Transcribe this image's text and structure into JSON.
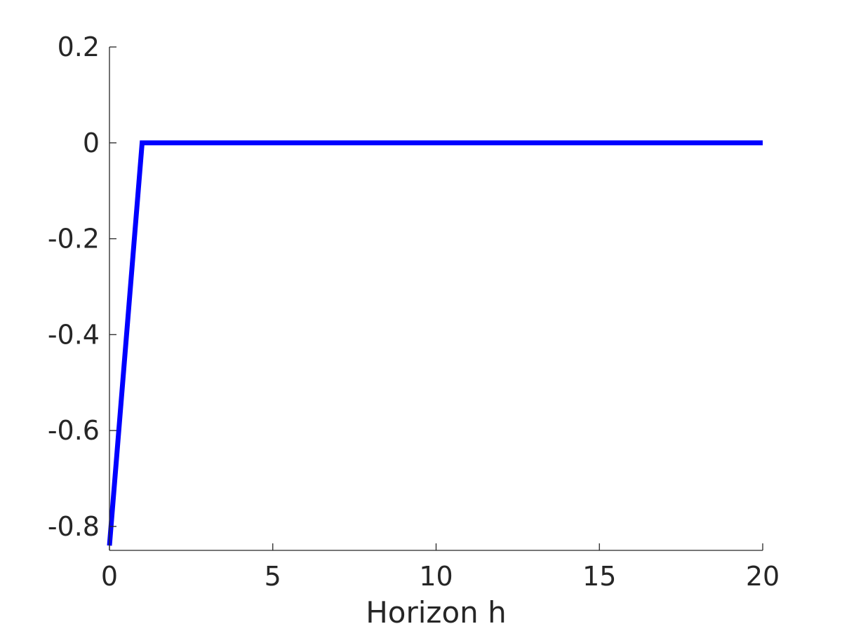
{
  "chart_data": {
    "type": "line",
    "title": "",
    "xlabel": "Horizon h",
    "ylabel": "",
    "xlim": [
      0,
      20
    ],
    "ylim": [
      -0.85,
      0.2
    ],
    "x_ticks": [
      0,
      5,
      10,
      15,
      20
    ],
    "x_tick_labels": [
      "0",
      "5",
      "10",
      "15",
      "20"
    ],
    "y_ticks": [
      0.2,
      0,
      -0.2,
      -0.4,
      -0.6,
      -0.8
    ],
    "y_tick_labels": [
      "0.2",
      "0",
      "-0.2",
      "-0.4",
      "-0.6",
      "-0.8"
    ],
    "grid": false,
    "box": false,
    "series": [
      {
        "color": "#0000ff",
        "x": [
          0,
          1,
          2,
          3,
          4,
          5,
          6,
          7,
          8,
          9,
          10,
          11,
          12,
          13,
          14,
          15,
          16,
          17,
          18,
          19,
          20
        ],
        "y": [
          -0.84,
          0,
          0,
          0,
          0,
          0,
          0,
          0,
          0,
          0,
          0,
          0,
          0,
          0,
          0,
          0,
          0,
          0,
          0,
          0,
          0
        ]
      }
    ]
  }
}
